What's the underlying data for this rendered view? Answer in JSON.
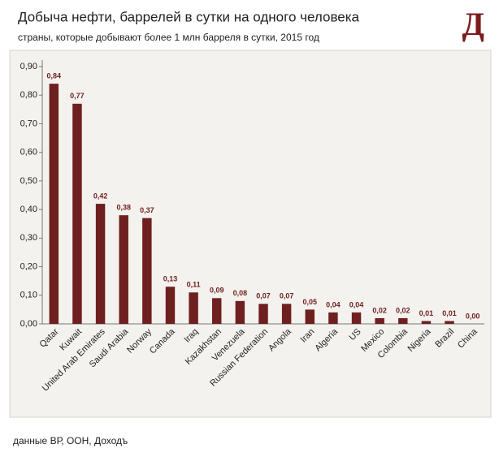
{
  "chart_data": {
    "type": "bar",
    "title": "Добыча нефти, баррелей в сутки на одного человека",
    "subtitle": "страны, которые добывают более 1 млн барреля в сутки, 2015 год",
    "logo": "Д",
    "source": "данные ВР, ООН, Доходъ",
    "categories": [
      "Qatar",
      "Kuwait",
      "United Arab Emirates",
      "Saudi Arabia",
      "Norway",
      "Canada",
      "Iraq",
      "Kazakhstan",
      "Venezuela",
      "Russian Federation",
      "Angola",
      "Iran",
      "Algeria",
      "US",
      "Mexico",
      "Colombia",
      "Nigeria",
      "Brazil",
      "China"
    ],
    "values": [
      0.84,
      0.77,
      0.42,
      0.38,
      0.37,
      0.13,
      0.11,
      0.09,
      0.08,
      0.07,
      0.07,
      0.05,
      0.04,
      0.04,
      0.02,
      0.02,
      0.01,
      0.01,
      0.0
    ],
    "value_labels": [
      "0,84",
      "0,77",
      "0,42",
      "0,38",
      "0,37",
      "0,13",
      "0,11",
      "0,09",
      "0,08",
      "0,07",
      "0,07",
      "0,05",
      "0,04",
      "0,04",
      "0,02",
      "0,02",
      "0,01",
      "0,01",
      "0,00"
    ],
    "color": "#6e1f1f",
    "ylim": [
      0,
      0.9
    ],
    "yticks": [
      {
        "value": 0,
        "label": "0,00"
      },
      {
        "value": 0.1,
        "label": "0,10"
      },
      {
        "value": 0.2,
        "label": "0,20"
      },
      {
        "value": 0.3,
        "label": "0,30"
      },
      {
        "value": 0.4,
        "label": "0,40"
      },
      {
        "value": 0.5,
        "label": "0,50"
      },
      {
        "value": 0.6,
        "label": "0,60"
      },
      {
        "value": 0.7,
        "label": "0,70"
      },
      {
        "value": 0.8,
        "label": "0,80"
      },
      {
        "value": 0.9,
        "label": "0,90"
      }
    ],
    "grid": false
  }
}
